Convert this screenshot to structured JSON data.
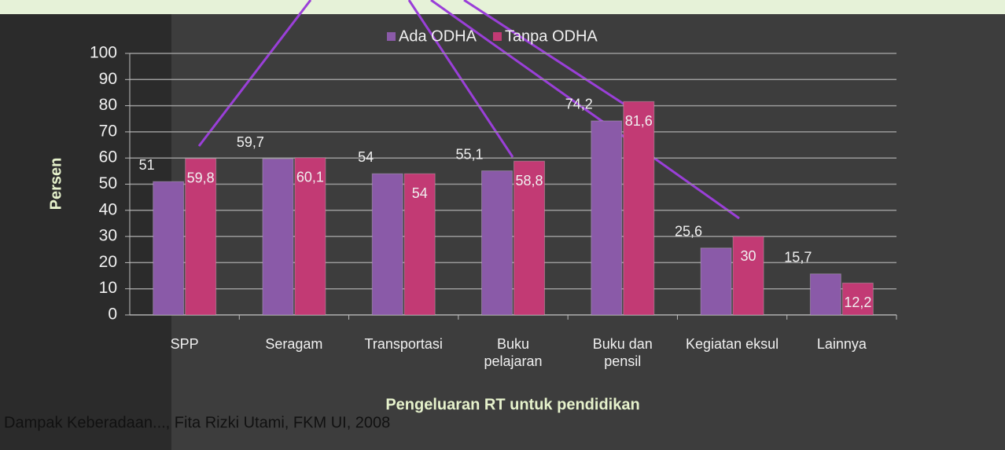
{
  "chart_data": {
    "type": "bar",
    "y_label": "Persen",
    "x_label": "Pengeluaran RT untuk pendidikan",
    "categories": [
      "SPP",
      "Seragam",
      "Transportasi",
      "Buku pelajaran",
      "Buku dan pensil",
      "Kegiatan eksul",
      "Lainnya"
    ],
    "series": [
      {
        "name": "Ada ODHA",
        "color": "#8a5aa8",
        "values": [
          51,
          59.7,
          54,
          55.1,
          74.2,
          25.6,
          15.7
        ],
        "value_labels": [
          "51",
          "59,7",
          "54",
          "55,1",
          "74,2",
          "25,6",
          "15,7"
        ]
      },
      {
        "name": "Tanpa ODHA",
        "color": "#c23a74",
        "values": [
          59.8,
          60.1,
          54,
          58.8,
          81.6,
          30,
          12.2
        ],
        "value_labels": [
          "59,8",
          "60,1",
          "54",
          "58,8",
          "81,6",
          "30",
          "12,2"
        ]
      }
    ],
    "ylim": [
      0,
      100
    ],
    "yticks": [
      0,
      10,
      20,
      30,
      40,
      50,
      60,
      70,
      80,
      90,
      100
    ],
    "grid": true,
    "legend": "top"
  },
  "footer": "Dampak Keberadaan..., Fita Rizki Utami, FKM UI, 2008"
}
